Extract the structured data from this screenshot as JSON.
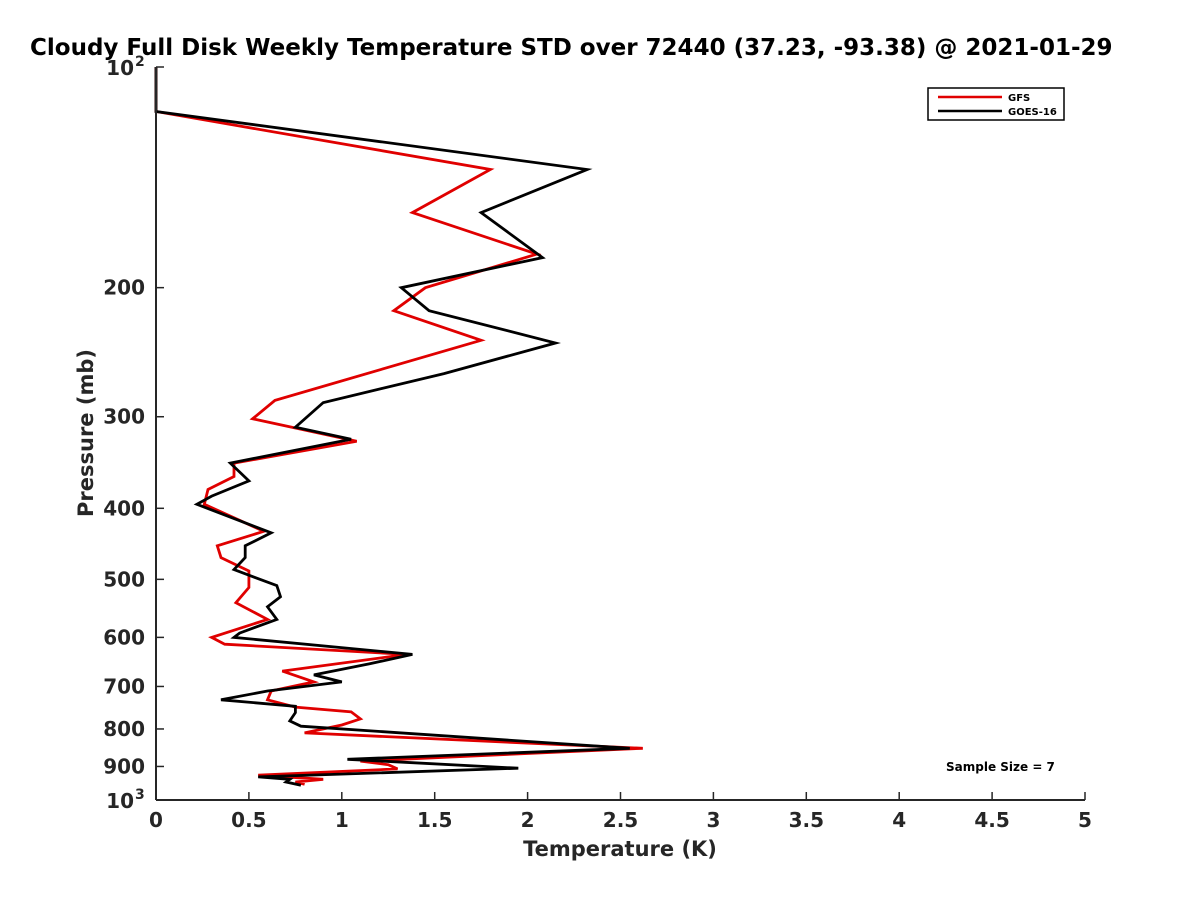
{
  "chart_data": {
    "type": "line",
    "title": "Cloudy Full Disk Weekly Temperature STD over 72440 (37.23, -93.38) @ 2021-01-29",
    "xlabel": "Temperature (K)",
    "ylabel": "Pressure (mb)",
    "xlim": [
      0,
      5
    ],
    "ylim": [
      100,
      1000
    ],
    "y_scale": "log",
    "y_reversed": true,
    "grid": false,
    "legend_position": "top-right",
    "x_ticks": [
      "0",
      "0.5",
      "1",
      "1.5",
      "2",
      "2.5",
      "3",
      "3.5",
      "4",
      "4.5",
      "5"
    ],
    "y_ticks": [
      {
        "value": 100,
        "base": "10",
        "exp": "2"
      },
      {
        "value": 200,
        "label": "200"
      },
      {
        "value": 300,
        "label": "300"
      },
      {
        "value": 400,
        "label": "400"
      },
      {
        "value": 500,
        "label": "500"
      },
      {
        "value": 600,
        "label": "600"
      },
      {
        "value": 700,
        "label": "700"
      },
      {
        "value": 800,
        "label": "800"
      },
      {
        "value": 900,
        "label": "900"
      },
      {
        "value": 1000,
        "base": "10",
        "exp": "3"
      }
    ],
    "annotation": "Sample Size = 7",
    "series": [
      {
        "name": "GFS",
        "color": "#e00000",
        "points": [
          [
            0,
            100
          ],
          [
            0,
            115
          ],
          [
            1.8,
            138
          ],
          [
            1.38,
            158
          ],
          [
            2.05,
            180
          ],
          [
            1.45,
            200
          ],
          [
            1.28,
            215
          ],
          [
            1.75,
            236
          ],
          [
            0.64,
            285
          ],
          [
            0.52,
            302
          ],
          [
            1.08,
            324
          ],
          [
            0.42,
            347
          ],
          [
            0.42,
            362
          ],
          [
            0.28,
            377
          ],
          [
            0.26,
            395
          ],
          [
            0.58,
            430
          ],
          [
            0.33,
            450
          ],
          [
            0.35,
            467
          ],
          [
            0.5,
            487
          ],
          [
            0.5,
            513
          ],
          [
            0.43,
            538
          ],
          [
            0.6,
            567
          ],
          [
            0.3,
            600
          ],
          [
            0.37,
            613
          ],
          [
            1.35,
            633
          ],
          [
            0.68,
            667
          ],
          [
            0.85,
            690
          ],
          [
            0.62,
            710
          ],
          [
            0.6,
            730
          ],
          [
            0.75,
            747
          ],
          [
            1.05,
            758
          ],
          [
            1.1,
            775
          ],
          [
            1.0,
            790
          ],
          [
            0.8,
            810
          ],
          [
            2.62,
            850
          ],
          [
            1.1,
            885
          ],
          [
            1.25,
            895
          ],
          [
            1.3,
            907
          ],
          [
            0.55,
            925
          ],
          [
            0.9,
            937
          ],
          [
            0.75,
            945
          ],
          [
            0.8,
            952
          ]
        ]
      },
      {
        "name": "GOES-16",
        "color": "#000000",
        "points": [
          [
            0,
            100
          ],
          [
            0,
            115
          ],
          [
            2.32,
            138
          ],
          [
            1.75,
            158
          ],
          [
            2.08,
            182
          ],
          [
            1.32,
            200
          ],
          [
            1.47,
            215
          ],
          [
            2.15,
            238
          ],
          [
            1.55,
            262
          ],
          [
            0.9,
            287
          ],
          [
            0.75,
            310
          ],
          [
            1.05,
            322
          ],
          [
            0.4,
            347
          ],
          [
            0.5,
            367
          ],
          [
            0.3,
            385
          ],
          [
            0.22,
            395
          ],
          [
            0.62,
            432
          ],
          [
            0.48,
            450
          ],
          [
            0.48,
            467
          ],
          [
            0.42,
            485
          ],
          [
            0.65,
            510
          ],
          [
            0.67,
            528
          ],
          [
            0.6,
            545
          ],
          [
            0.65,
            567
          ],
          [
            0.45,
            592
          ],
          [
            0.42,
            600
          ],
          [
            1.38,
            633
          ],
          [
            1.15,
            652
          ],
          [
            0.85,
            675
          ],
          [
            1.0,
            690
          ],
          [
            0.6,
            710
          ],
          [
            0.35,
            730
          ],
          [
            0.75,
            745
          ],
          [
            0.75,
            760
          ],
          [
            0.72,
            780
          ],
          [
            0.78,
            793
          ],
          [
            2.55,
            850
          ],
          [
            1.03,
            880
          ],
          [
            1.95,
            905
          ],
          [
            0.55,
            930
          ],
          [
            0.72,
            937
          ],
          [
            0.7,
            945
          ],
          [
            0.78,
            955
          ]
        ]
      }
    ]
  }
}
